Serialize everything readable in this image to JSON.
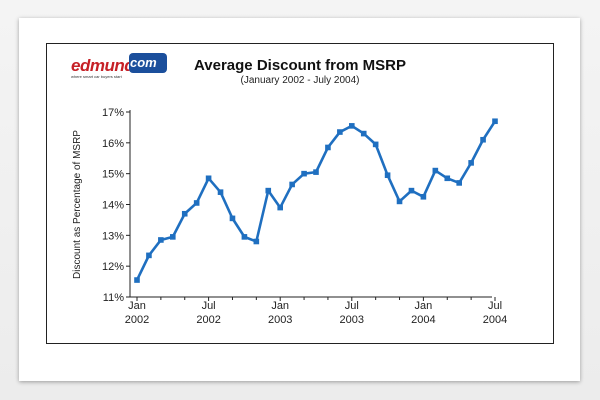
{
  "logo": {
    "name": "edmunds",
    "com": "com",
    "tagline": "where smart car buyers start"
  },
  "chart_data": {
    "type": "line",
    "title": "Average Discount from MSRP",
    "subtitle": "(January 2002 - July 2004)",
    "ylabel": "Discount as Percentage of MSRP",
    "xlabel": "",
    "ylim": [
      11,
      17
    ],
    "yticks": [
      "11%",
      "12%",
      "13%",
      "14%",
      "15%",
      "16%",
      "17%"
    ],
    "xtick_labels": [
      {
        "month": "Jan",
        "year": "2002"
      },
      {
        "month": "Jul",
        "year": "2002"
      },
      {
        "month": "Jan",
        "year": "2003"
      },
      {
        "month": "Jul",
        "year": "2003"
      },
      {
        "month": "Jan",
        "year": "2004"
      },
      {
        "month": "Jul",
        "year": "2004"
      }
    ],
    "x": [
      "Jan 2002",
      "Feb 2002",
      "Mar 2002",
      "Apr 2002",
      "May 2002",
      "Jun 2002",
      "Jul 2002",
      "Aug 2002",
      "Sep 2002",
      "Oct 2002",
      "Nov 2002",
      "Dec 2002",
      "Jan 2003",
      "Feb 2003",
      "Mar 2003",
      "Apr 2003",
      "May 2003",
      "Jun 2003",
      "Jul 2003",
      "Aug 2003",
      "Sep 2003",
      "Oct 2003",
      "Nov 2003",
      "Dec 2003",
      "Jan 2004",
      "Feb 2004",
      "Mar 2004",
      "Apr 2004",
      "May 2004",
      "Jun 2004",
      "Jul 2004"
    ],
    "series": [
      {
        "color": "#1f6fc0",
        "values": [
          11.55,
          12.35,
          12.85,
          12.95,
          13.7,
          14.05,
          14.85,
          14.4,
          13.55,
          12.95,
          12.8,
          14.45,
          13.9,
          14.65,
          15.0,
          15.05,
          15.85,
          16.35,
          16.55,
          16.3,
          15.95,
          14.95,
          14.1,
          14.45,
          14.25,
          15.1,
          14.85,
          14.7,
          15.35,
          16.1,
          16.7
        ]
      }
    ],
    "grid": false,
    "legend": "none"
  }
}
